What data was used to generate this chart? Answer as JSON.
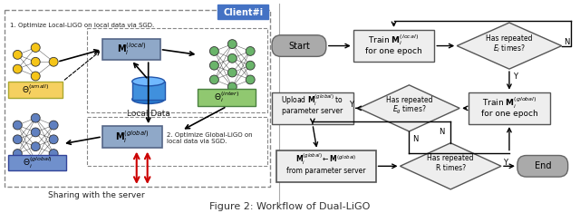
{
  "title": "Figure 2: Workflow of Dual-LiGO",
  "title_fontsize": 8,
  "background": "#ffffff",
  "left_panel": {
    "client_label": "Client#i",
    "client_box_color": "#4472c4",
    "step1_text": "1. Optimize Local-LiGO on local data via SGD.",
    "step2_text": "2. Optimize Global-LiGO on\nlocal data via SGD.",
    "sharing_text": "Sharing with the server",
    "nn_yellow_color": "#f5c518",
    "nn_green_color": "#6ab46a",
    "nn_blue_color": "#6080c0",
    "box_fill_gray": "#8fa8c8",
    "box_fill_green": "#90c870",
    "box_fill_yellow": "#f5d060",
    "box_fill_blue": "#7090cc",
    "red_arrow_color": "#cc0000",
    "db_color": "#4090dd"
  },
  "right_panel": {
    "start_end_color": "#aaaaaa",
    "box_color": "#eeeeee",
    "diamond_color": "#eeeeee",
    "start_label": "Start",
    "end_label": "End"
  }
}
